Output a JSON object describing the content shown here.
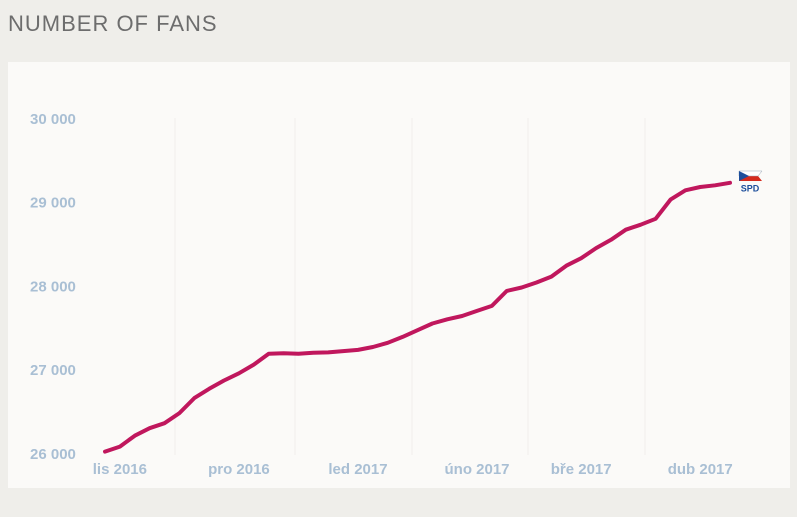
{
  "chart_data": {
    "type": "line",
    "title": "NUMBER OF FANS",
    "categories": [
      null,
      "lis 2016",
      null,
      null,
      null,
      null,
      null,
      null,
      null,
      "pro 2016",
      null,
      null,
      null,
      null,
      null,
      null,
      null,
      "led 2017",
      null,
      null,
      null,
      null,
      null,
      null,
      null,
      "úno 2017",
      null,
      null,
      null,
      null,
      null,
      null,
      "bře 2017",
      null,
      null,
      null,
      null,
      null,
      null,
      null,
      "dub 2017",
      null,
      null
    ],
    "series": [
      {
        "name": "SPD",
        "color": "#c0175d",
        "values": [
          26040,
          26100,
          26230,
          26320,
          26380,
          26500,
          26680,
          26790,
          26890,
          26975,
          27080,
          27210,
          27215,
          27210,
          27220,
          27225,
          27240,
          27255,
          27290,
          27340,
          27410,
          27490,
          27570,
          27620,
          27660,
          27720,
          27780,
          27960,
          28000,
          28060,
          28130,
          28260,
          28350,
          28470,
          28570,
          28690,
          28750,
          28820,
          29050,
          29160,
          29200,
          29220,
          29250
        ]
      }
    ],
    "ylim": [
      26000,
      30000
    ],
    "yticks": [
      {
        "value": 26000,
        "label": "26 000"
      },
      {
        "value": 27000,
        "label": "27 000"
      },
      {
        "value": 28000,
        "label": "28 000"
      },
      {
        "value": 29000,
        "label": "29 000"
      },
      {
        "value": 30000,
        "label": "30 000"
      }
    ]
  }
}
